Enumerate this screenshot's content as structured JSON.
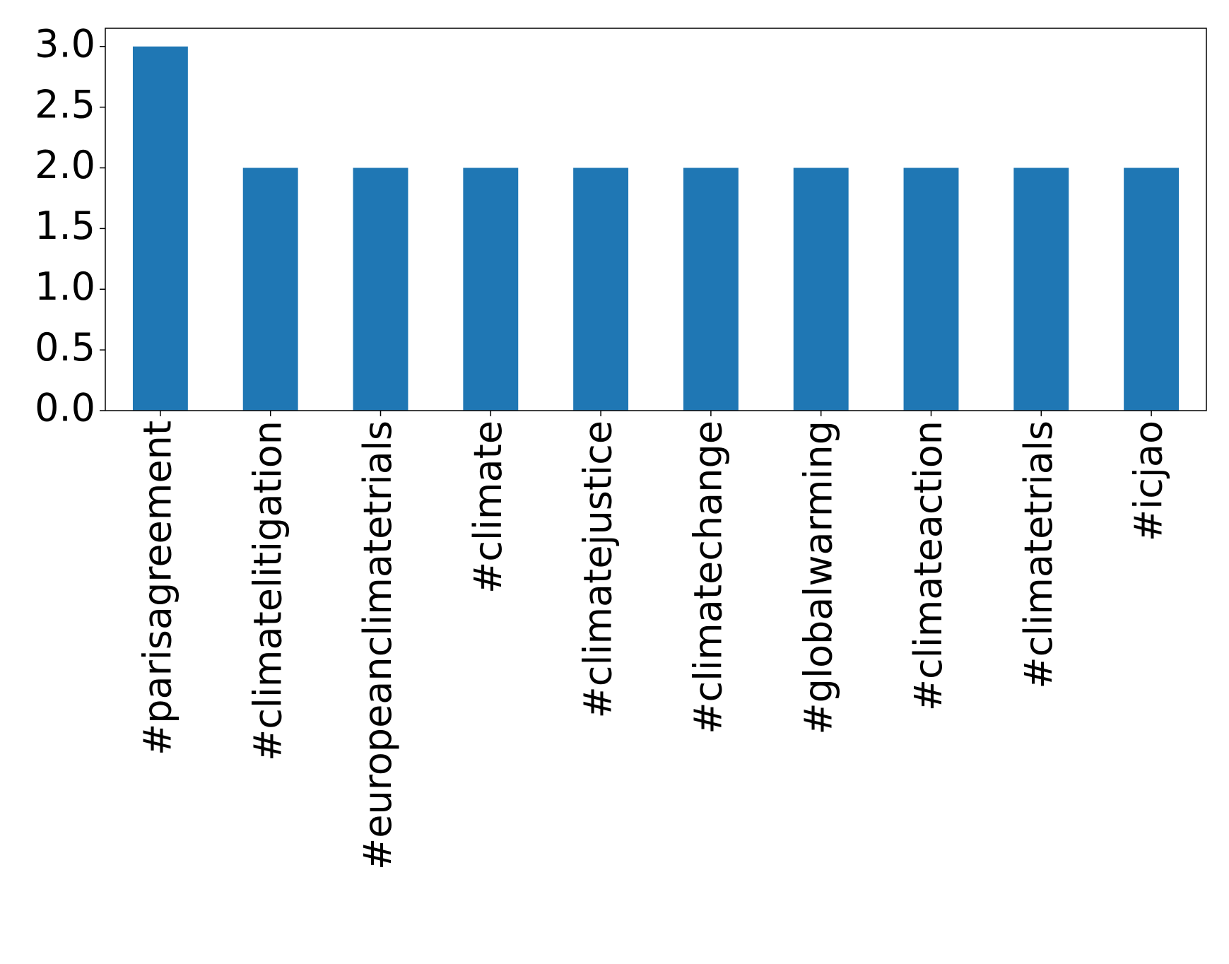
{
  "chart_data": {
    "type": "bar",
    "categories": [
      "#parisagreement",
      "#climatelitigation",
      "#europeanclimatetrials",
      "#climate",
      "#climatejustice",
      "#climatechange",
      "#globalwarming",
      "#climateaction",
      "#climatetrials",
      "#icjao"
    ],
    "values": [
      3,
      2,
      2,
      2,
      2,
      2,
      2,
      2,
      2,
      2
    ],
    "color": "#1f77b4",
    "ylim": [
      0,
      3.15
    ],
    "yticks": [
      {
        "value": 0,
        "label": "0.0"
      },
      0.5,
      {
        "value": 1,
        "label": "1.0"
      },
      1.5,
      {
        "value": 2,
        "label": "2.0"
      },
      2.5,
      {
        "value": 3,
        "label": "3.0"
      }
    ],
    "grid": false
  }
}
